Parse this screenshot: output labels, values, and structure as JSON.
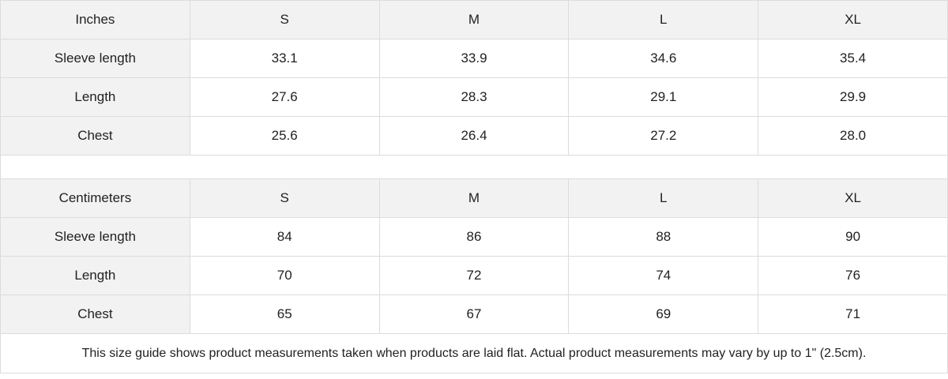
{
  "tables": [
    {
      "header": [
        "Inches",
        "S",
        "M",
        "L",
        "XL"
      ],
      "rows": [
        [
          "Sleeve length",
          "33.1",
          "33.9",
          "34.6",
          "35.4"
        ],
        [
          "Length",
          "27.6",
          "28.3",
          "29.1",
          "29.9"
        ],
        [
          "Chest",
          "25.6",
          "26.4",
          "27.2",
          "28.0"
        ]
      ]
    },
    {
      "header": [
        "Centimeters",
        "S",
        "M",
        "L",
        "XL"
      ],
      "rows": [
        [
          "Sleeve length",
          "84",
          "86",
          "88",
          "90"
        ],
        [
          "Length",
          "70",
          "72",
          "74",
          "76"
        ],
        [
          "Chest",
          "65",
          "67",
          "69",
          "71"
        ]
      ]
    }
  ],
  "note": "This size guide shows product measurements taken when products are laid flat.  Actual product measurements may vary by up to 1\" (2.5cm).",
  "colors": {
    "header_bg": "#f2f2f2",
    "border": "#dcdcdc"
  }
}
